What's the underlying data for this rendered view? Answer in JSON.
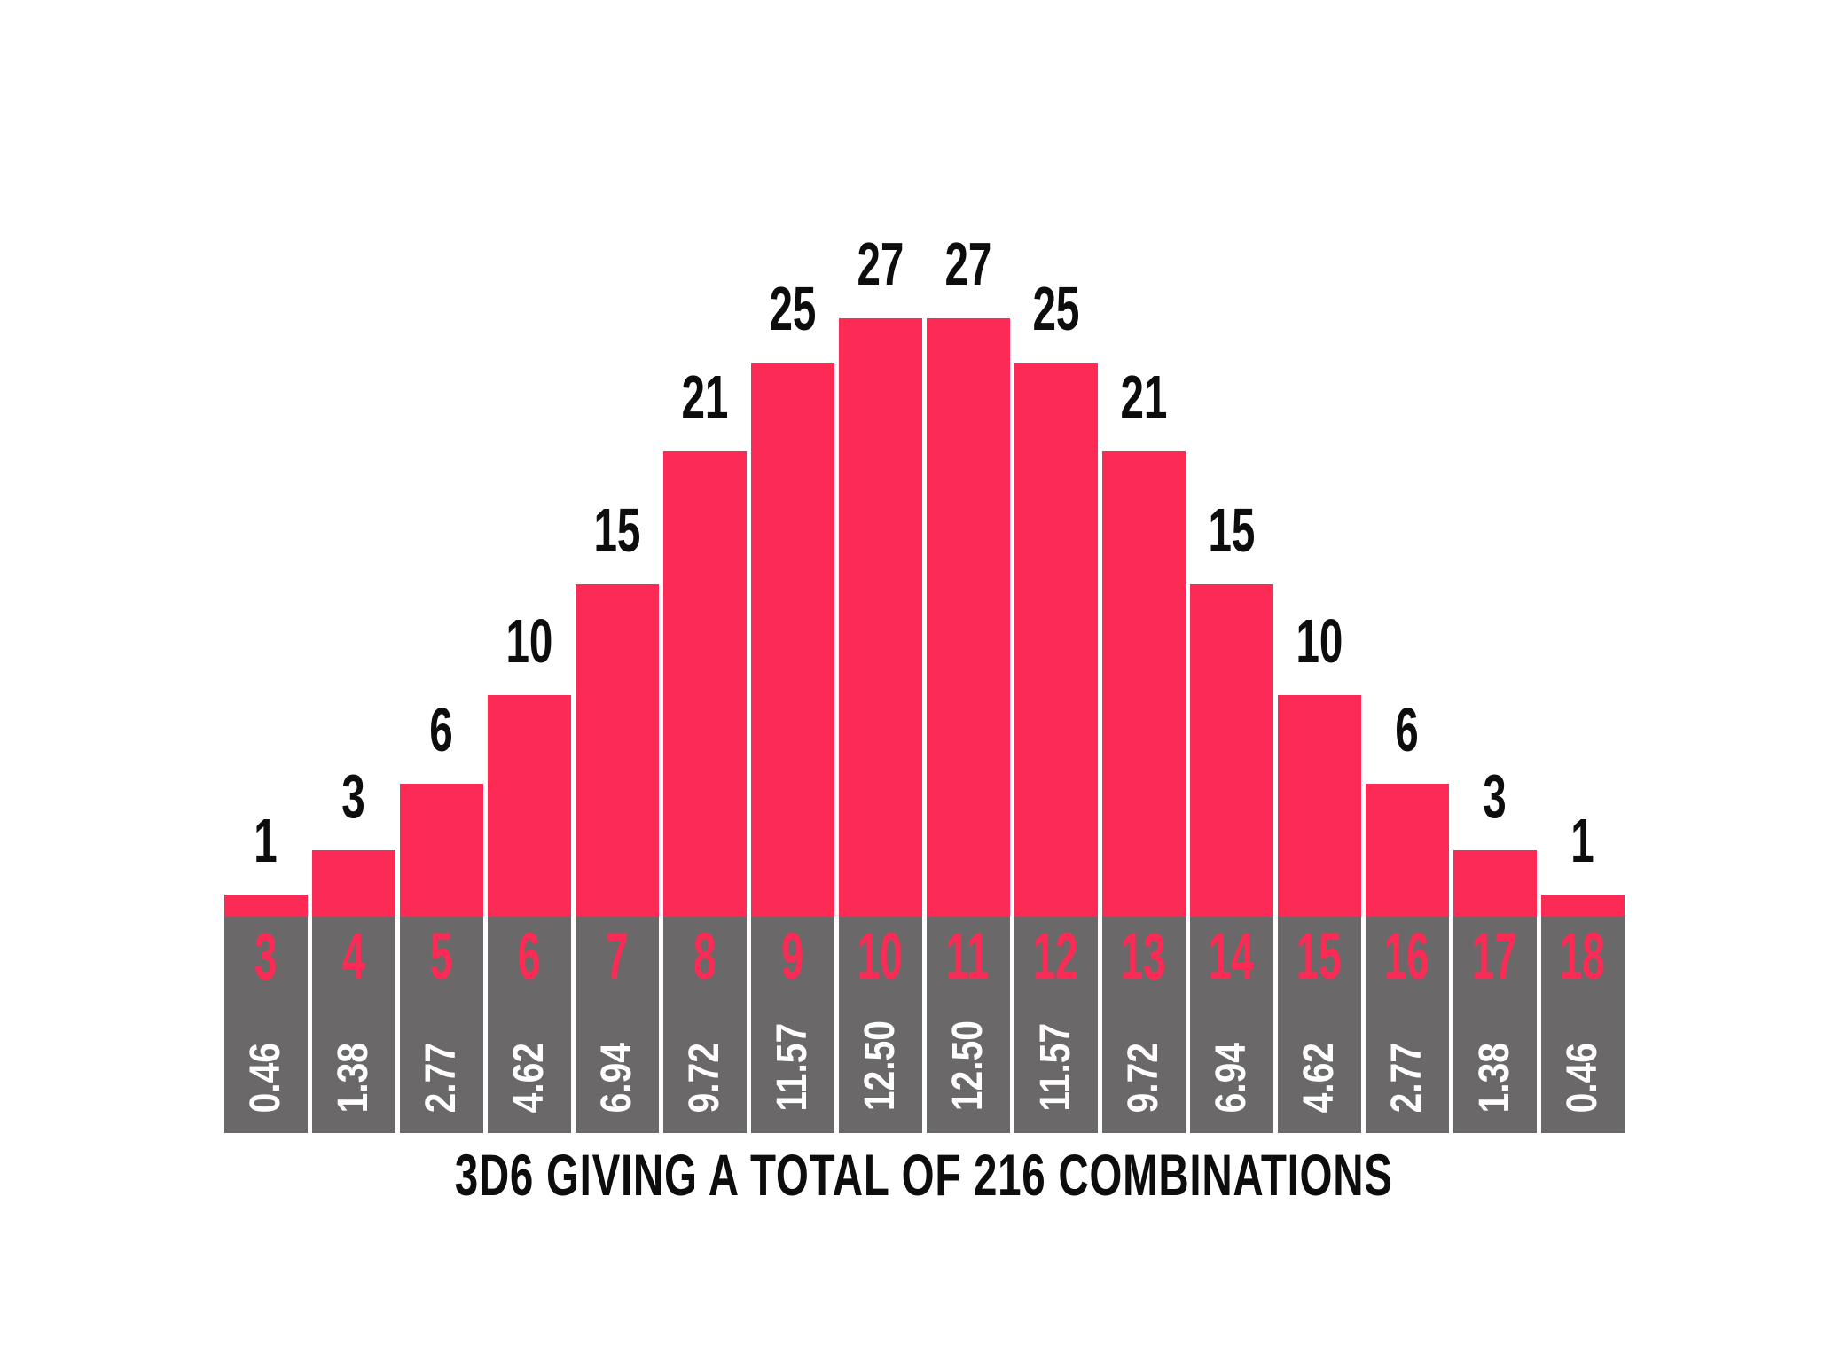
{
  "title": {
    "text": "3D6 GIVING A TOTAL OF 216 COMBINATIONS"
  },
  "colors": {
    "bar": "#FB2B55",
    "axis_band": "#6A6868",
    "count_label": "#0d0d0d",
    "sum_label": "#FB2B55",
    "percent_label": "#ffffff",
    "background": "#ffffff"
  },
  "chart_data": {
    "type": "bar",
    "title": "3D6 GIVING A TOTAL OF 216 COMBINATIONS",
    "xlabel": "",
    "ylabel": "",
    "grid": false,
    "legend": false,
    "ylim": [
      0,
      27
    ],
    "categories": [
      3,
      4,
      5,
      6,
      7,
      8,
      9,
      10,
      11,
      12,
      13,
      14,
      15,
      16,
      17,
      18
    ],
    "series": [
      {
        "name": "combinations",
        "values": [
          1,
          3,
          6,
          10,
          15,
          21,
          25,
          27,
          27,
          25,
          21,
          15,
          10,
          6,
          3,
          1
        ]
      },
      {
        "name": "percent",
        "values": [
          0.46,
          1.38,
          2.77,
          4.62,
          6.94,
          9.72,
          11.57,
          12.5,
          12.5,
          11.57,
          9.72,
          6.94,
          4.62,
          2.77,
          1.38,
          0.46
        ]
      }
    ],
    "bars": [
      {
        "sum": "3",
        "count": "1",
        "percent": "0.46"
      },
      {
        "sum": "4",
        "count": "3",
        "percent": "1.38"
      },
      {
        "sum": "5",
        "count": "6",
        "percent": "2.77"
      },
      {
        "sum": "6",
        "count": "10",
        "percent": "4.62"
      },
      {
        "sum": "7",
        "count": "15",
        "percent": "6.94"
      },
      {
        "sum": "8",
        "count": "21",
        "percent": "9.72"
      },
      {
        "sum": "9",
        "count": "25",
        "percent": "11.57"
      },
      {
        "sum": "10",
        "count": "27",
        "percent": "12.50"
      },
      {
        "sum": "11",
        "count": "27",
        "percent": "12.50"
      },
      {
        "sum": "12",
        "count": "25",
        "percent": "11.57"
      },
      {
        "sum": "13",
        "count": "21",
        "percent": "9.72"
      },
      {
        "sum": "14",
        "count": "15",
        "percent": "6.94"
      },
      {
        "sum": "15",
        "count": "10",
        "percent": "4.62"
      },
      {
        "sum": "16",
        "count": "6",
        "percent": "2.77"
      },
      {
        "sum": "17",
        "count": "3",
        "percent": "1.38"
      },
      {
        "sum": "18",
        "count": "1",
        "percent": "0.46"
      }
    ]
  }
}
